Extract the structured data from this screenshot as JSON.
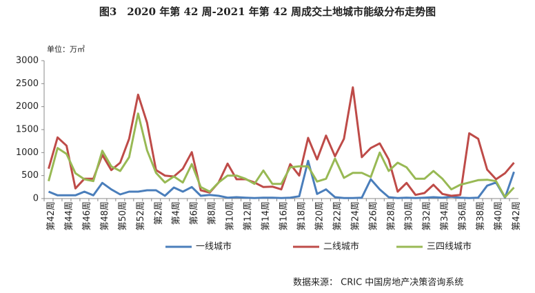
{
  "chart_data": {
    "type": "line",
    "title": "图3　2020 年第 42 周-2021 年第 42 周成交土地城市能级分布走势图",
    "unit": "单位：万㎡",
    "source": "数据来源： CRIC 中国房地产决策咨询系统",
    "categories": [
      "第42周",
      null,
      "第44周",
      null,
      "第46周",
      null,
      "第48周",
      null,
      "第50周",
      null,
      "第52周",
      null,
      "第2周",
      null,
      "第4周",
      null,
      "第6周",
      null,
      "第8周",
      null,
      "第10周",
      null,
      "第12周",
      null,
      "第14周",
      null,
      "第16周",
      null,
      "第18周",
      null,
      "第20周",
      null,
      "第22周",
      null,
      "第24周",
      null,
      "第26周",
      null,
      "第28周",
      null,
      "第30周",
      null,
      "第32周",
      null,
      "第34周",
      null,
      "第36周",
      null,
      "第38周",
      null,
      "第40周",
      null,
      "第42周"
    ],
    "series": [
      {
        "name": "一线城市",
        "color": "#4a7ebb",
        "values": [
          150,
          70,
          70,
          70,
          150,
          70,
          340,
          200,
          90,
          150,
          150,
          180,
          180,
          60,
          240,
          150,
          250,
          60,
          80,
          60,
          20,
          30,
          20,
          10,
          20,
          20,
          10,
          20,
          50,
          820,
          100,
          200,
          30,
          10,
          10,
          20,
          420,
          200,
          30,
          10,
          20,
          10,
          20,
          30,
          20,
          40,
          20,
          10,
          20,
          280,
          350,
          20,
          580
        ]
      },
      {
        "name": "二线城市",
        "color": "#be4b48",
        "values": [
          650,
          1330,
          1150,
          220,
          430,
          430,
          950,
          620,
          780,
          1300,
          2260,
          1650,
          620,
          500,
          480,
          650,
          1010,
          180,
          130,
          350,
          760,
          420,
          420,
          350,
          250,
          260,
          200,
          750,
          500,
          1320,
          850,
          1370,
          920,
          1300,
          2420,
          900,
          1100,
          1200,
          850,
          150,
          340,
          80,
          120,
          300,
          100,
          60,
          80,
          1420,
          1300,
          630,
          420,
          550,
          780
        ]
      },
      {
        "name": "三四线城市",
        "color": "#98b954",
        "values": [
          380,
          1100,
          970,
          550,
          420,
          380,
          1040,
          700,
          600,
          900,
          1850,
          1050,
          560,
          350,
          480,
          350,
          750,
          250,
          150,
          350,
          500,
          500,
          430,
          320,
          610,
          320,
          320,
          680,
          700,
          700,
          370,
          430,
          870,
          450,
          560,
          560,
          470,
          1000,
          600,
          780,
          680,
          430,
          430,
          600,
          430,
          200,
          300,
          350,
          400,
          410,
          380,
          30,
          240
        ]
      }
    ],
    "ylim": [
      0,
      3000
    ],
    "yticks": [
      0,
      500,
      1000,
      1500,
      2000,
      2500,
      3000
    ],
    "legend": "bottom"
  }
}
